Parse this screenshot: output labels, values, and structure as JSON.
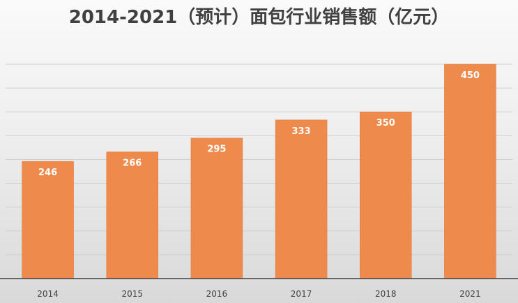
{
  "chart_data": {
    "type": "bar",
    "title": "2014-2021（预计）面包行业销售额（亿元）",
    "categories": [
      "2014",
      "2015",
      "2016",
      "2017",
      "2018",
      "2021"
    ],
    "values": [
      246,
      266,
      295,
      333,
      350,
      450
    ],
    "xlabel": "",
    "ylabel": "",
    "ylim": [
      0,
      450
    ],
    "grid": true,
    "legend": "none",
    "colors": {
      "bar": "#ED8A4C",
      "bar_edge": "#E07A3A",
      "grid": "#cfcfcf",
      "axis": "#404040"
    }
  }
}
